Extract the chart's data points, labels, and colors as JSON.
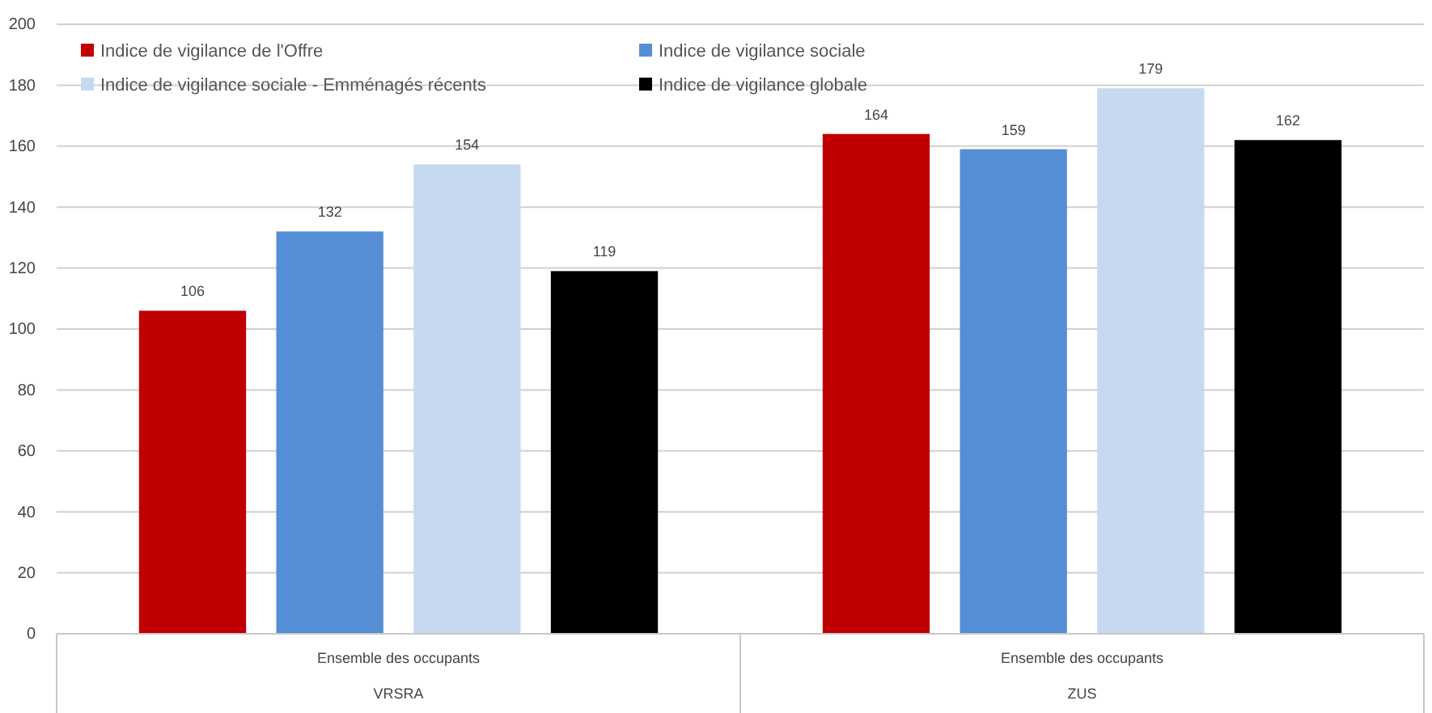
{
  "chart_data": {
    "type": "bar",
    "categories": [
      "Ensemble des occupants",
      "Ensemble des occupants"
    ],
    "series": [
      {
        "name": "Indice de vigilance de l'Offre",
        "color": "#c00000",
        "values": [
          106,
          164
        ]
      },
      {
        "name": "Indice de vigilance sociale",
        "color": "#558ed5",
        "values": [
          132,
          159
        ]
      },
      {
        "name": "Indice de vigilance sociale - Emménagés récents",
        "color": "#c6d9f1",
        "values": [
          154,
          179
        ]
      },
      {
        "name": "Indice de vigilance globale",
        "color": "#000000",
        "values": [
          119,
          162
        ]
      }
    ],
    "ylim": [
      0,
      200
    ],
    "yticks": [
      0,
      20,
      40,
      60,
      80,
      100,
      120,
      140,
      160,
      180,
      200
    ],
    "grid": "y",
    "legend": "top left",
    "data_labels": true,
    "annotations": [
      "VRSRA",
      "ZUS"
    ]
  }
}
